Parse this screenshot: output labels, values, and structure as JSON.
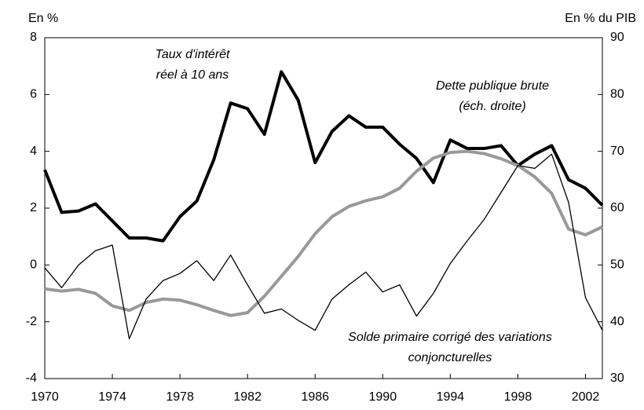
{
  "chart_data": {
    "type": "line",
    "ylabel": "En %",
    "y2label": "En % du PIB",
    "x": [
      1970,
      1971,
      1972,
      1973,
      1974,
      1975,
      1976,
      1977,
      1978,
      1979,
      1980,
      1981,
      1982,
      1983,
      1984,
      1985,
      1986,
      1987,
      1988,
      1989,
      1990,
      1991,
      1992,
      1993,
      1994,
      1995,
      1996,
      1997,
      1998,
      1999,
      2000,
      2001,
      2002,
      2003
    ],
    "xlim": [
      1970,
      2003
    ],
    "xticks": [
      1970,
      1974,
      1978,
      1982,
      1986,
      1990,
      1994,
      1998,
      2002
    ],
    "ylim": [
      -4,
      8
    ],
    "yticks": [
      -4,
      -2,
      0,
      2,
      4,
      6,
      8
    ],
    "y2lim": [
      30,
      90
    ],
    "y2ticks": [
      30,
      40,
      50,
      60,
      70,
      80,
      90
    ],
    "grid": false,
    "series": [
      {
        "name": [
          "Taux d'intérêt",
          "réel à 10 ans"
        ],
        "color": "#000000",
        "width": 4,
        "values": [
          3.35,
          1.85,
          1.9,
          2.15,
          1.55,
          0.95,
          0.95,
          0.85,
          1.7,
          2.25,
          3.7,
          5.7,
          5.5,
          4.6,
          6.8,
          5.8,
          3.6,
          4.7,
          5.25,
          4.85,
          4.85,
          4.25,
          3.75,
          2.9,
          4.4,
          4.1,
          4.1,
          4.2,
          3.5,
          3.9,
          4.2,
          3.0,
          2.7,
          2.1
        ]
      },
      {
        "name": [
          "Dette publique brute",
          "(éch. droite)"
        ],
        "color": "#999999",
        "width": 4,
        "axis": "y2",
        "values": [
          45.8,
          45.4,
          45.7,
          45.0,
          42.8,
          42.0,
          43.4,
          44.0,
          43.8,
          43.0,
          42.0,
          41.1,
          41.6,
          44.5,
          48.0,
          51.5,
          55.5,
          58.5,
          60.3,
          61.3,
          62.0,
          63.5,
          66.5,
          68.8,
          69.8,
          70.0,
          69.6,
          68.7,
          67.5,
          65.5,
          62.6,
          56.3,
          55.3,
          56.7
        ]
      },
      {
        "name": [
          "Solde primaire corrigé des variations",
          "conjoncturelles"
        ],
        "color": "#000000",
        "width": 1.3,
        "values": [
          -0.1,
          -0.8,
          0.0,
          0.5,
          0.7,
          -2.6,
          -1.2,
          -0.55,
          -0.3,
          0.15,
          -0.55,
          0.35,
          -0.7,
          -1.7,
          -1.55,
          -1.95,
          -2.3,
          -1.2,
          -0.7,
          -0.25,
          -0.95,
          -0.7,
          -1.8,
          -1.0,
          0.05,
          0.85,
          1.6,
          2.55,
          3.5,
          3.4,
          3.9,
          2.2,
          -1.15,
          -2.3
        ]
      }
    ]
  }
}
